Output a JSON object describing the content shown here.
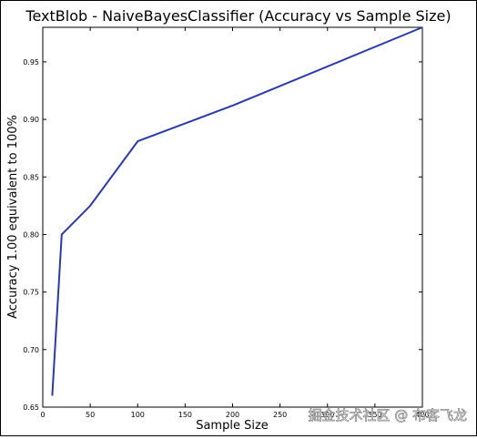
{
  "chart_data": {
    "type": "line",
    "title": "TextBlob - NaiveBayesClassifier (Accuracy vs Sample Size)",
    "xlabel": "Sample Size",
    "ylabel": "Accuracy 1.00 equivalent to 100%",
    "xlim": [
      0,
      400
    ],
    "ylim": [
      0.65,
      0.98
    ],
    "x_ticks": [
      0,
      50,
      100,
      150,
      200,
      250,
      300,
      350,
      400
    ],
    "x_tick_labels": [
      "0",
      "50",
      "100",
      "150",
      "200",
      "250",
      "300",
      "350",
      "400"
    ],
    "y_ticks": [
      0.65,
      0.7,
      0.75,
      0.8,
      0.85,
      0.9,
      0.95
    ],
    "y_tick_labels": [
      "0.65",
      "0.70",
      "0.75",
      "0.80",
      "0.85",
      "0.90",
      "0.95"
    ],
    "grid": false,
    "line_color": "#2b3aa8",
    "series": [
      {
        "x": [
          10,
          20,
          50,
          100,
          200,
          400
        ],
        "y": [
          0.66,
          0.8,
          0.825,
          0.881,
          0.912,
          0.98
        ]
      }
    ]
  },
  "watermark": "掘金技术社区 @ 布客飞龙"
}
